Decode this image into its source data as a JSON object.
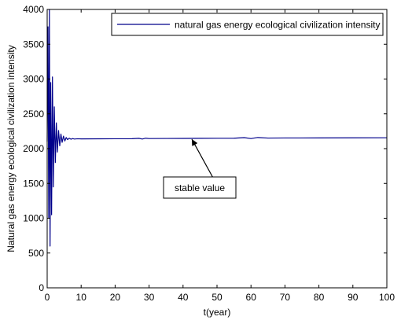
{
  "chart_data": {
    "type": "line",
    "title": "",
    "xlabel": "t(year)",
    "ylabel": "Natural gas energy ecological civilization intensity",
    "xlim": [
      0,
      100
    ],
    "ylim": [
      0,
      4000
    ],
    "xticks": [
      0,
      10,
      20,
      30,
      40,
      50,
      60,
      70,
      80,
      90,
      100
    ],
    "yticks": [
      0,
      500,
      1000,
      1500,
      2000,
      2500,
      3000,
      3500,
      4000
    ],
    "grid": false,
    "legend_position": "top-right",
    "series": [
      {
        "name": "natural gas energy ecological civilization intensity",
        "color": "#00008b",
        "x": [
          0,
          0.25,
          0.45,
          0.65,
          0.85,
          1.05,
          1.3,
          1.55,
          1.8,
          2.1,
          2.4,
          2.7,
          3.0,
          3.35,
          3.7,
          4.05,
          4.4,
          4.8,
          5.2,
          5.6,
          6.0,
          6.5,
          7.0,
          7.5,
          8.0,
          9.0,
          10,
          15,
          20,
          25,
          27,
          28,
          29,
          30,
          35,
          40,
          45,
          50,
          55,
          58,
          60,
          62,
          65,
          70,
          80,
          90,
          100
        ],
        "y": [
          2100,
          3750,
          1000,
          4000,
          600,
          2950,
          1050,
          3030,
          1450,
          2600,
          1800,
          2370,
          1950,
          2260,
          2040,
          2210,
          2090,
          2180,
          2110,
          2160,
          2130,
          2150,
          2135,
          2145,
          2138,
          2142,
          2140,
          2141,
          2142,
          2143,
          2148,
          2138,
          2150,
          2145,
          2146,
          2147,
          2148,
          2149,
          2150,
          2158,
          2145,
          2160,
          2152,
          2153,
          2154,
          2155,
          2156
        ]
      }
    ],
    "annotations": [
      {
        "text": "stable value",
        "target_x": 43,
        "target_y": 2150
      }
    ]
  }
}
